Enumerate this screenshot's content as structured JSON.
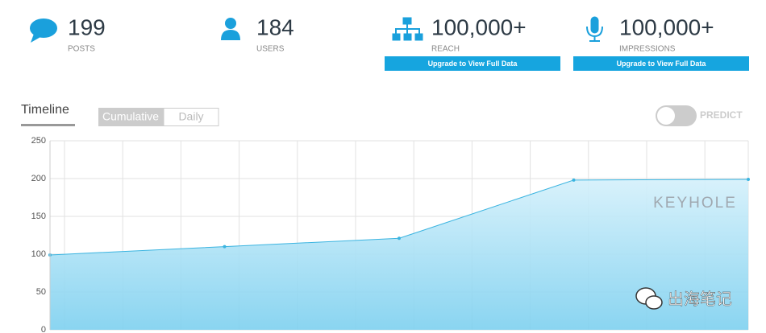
{
  "stats": [
    {
      "value": "199",
      "label": "POSTS"
    },
    {
      "value": "184",
      "label": "USERS"
    },
    {
      "value": "100,000+",
      "label": "REACH",
      "button": "Upgrade to View Full Data"
    },
    {
      "value": "100,000+",
      "label": "IMPRESSIONS",
      "button": "Upgrade to View Full Data"
    }
  ],
  "tabs": {
    "title": "Timeline",
    "options": [
      "Cumulative",
      "Daily"
    ],
    "toggle": "PREDICT"
  },
  "watermarks": [
    "KEYHOLE",
    "出海笔记"
  ],
  "chart_data": {
    "type": "area",
    "categories": [
      null,
      null,
      null,
      null,
      null
    ],
    "values": [
      99,
      110,
      121,
      198,
      199
    ],
    "color": "#3bb4e0",
    "ylim": [
      0,
      250
    ],
    "yticks": [
      0,
      50,
      100,
      150,
      200,
      250
    ],
    "grid": true
  }
}
